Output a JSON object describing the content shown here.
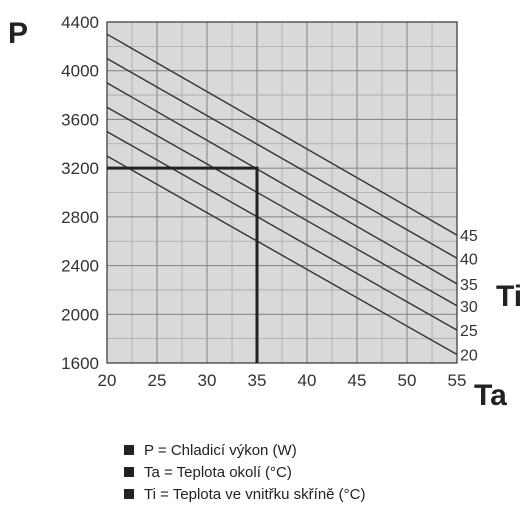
{
  "chart_data": {
    "type": "line",
    "title": "",
    "x_axis": {
      "label": "Ta",
      "min": 20,
      "max": 55,
      "ticks": [
        20,
        25,
        30,
        35,
        40,
        45,
        50,
        55
      ],
      "minor_step": 2.5
    },
    "y_axis": {
      "label": "P",
      "min": 1600,
      "max": 4400,
      "ticks": [
        1600,
        2000,
        2400,
        2800,
        3200,
        3600,
        4000,
        4400
      ],
      "minor_step": 200
    },
    "grid": true,
    "series_axis_label": "Ti",
    "series": [
      {
        "name": "45",
        "x": [
          20,
          55
        ],
        "y": [
          4300,
          2650
        ]
      },
      {
        "name": "40",
        "x": [
          20,
          55
        ],
        "y": [
          4100,
          2460
        ]
      },
      {
        "name": "35",
        "x": [
          20,
          55
        ],
        "y": [
          3900,
          2250
        ]
      },
      {
        "name": "30",
        "x": [
          20,
          55
        ],
        "y": [
          3700,
          2070
        ]
      },
      {
        "name": "25",
        "x": [
          20,
          55
        ],
        "y": [
          3500,
          1870
        ]
      },
      {
        "name": "20",
        "x": [
          20,
          55
        ],
        "y": [
          3300,
          1670
        ]
      }
    ],
    "reference_path": {
      "x": [
        20,
        35,
        35
      ],
      "y": [
        3200,
        3200,
        1600
      ]
    }
  },
  "legend": [
    "P = Chladicí výkon (W)",
    "Ta = Teplota okolí  (°C)",
    "Ti = Teplota ve vnitřku skříně (°C)"
  ]
}
